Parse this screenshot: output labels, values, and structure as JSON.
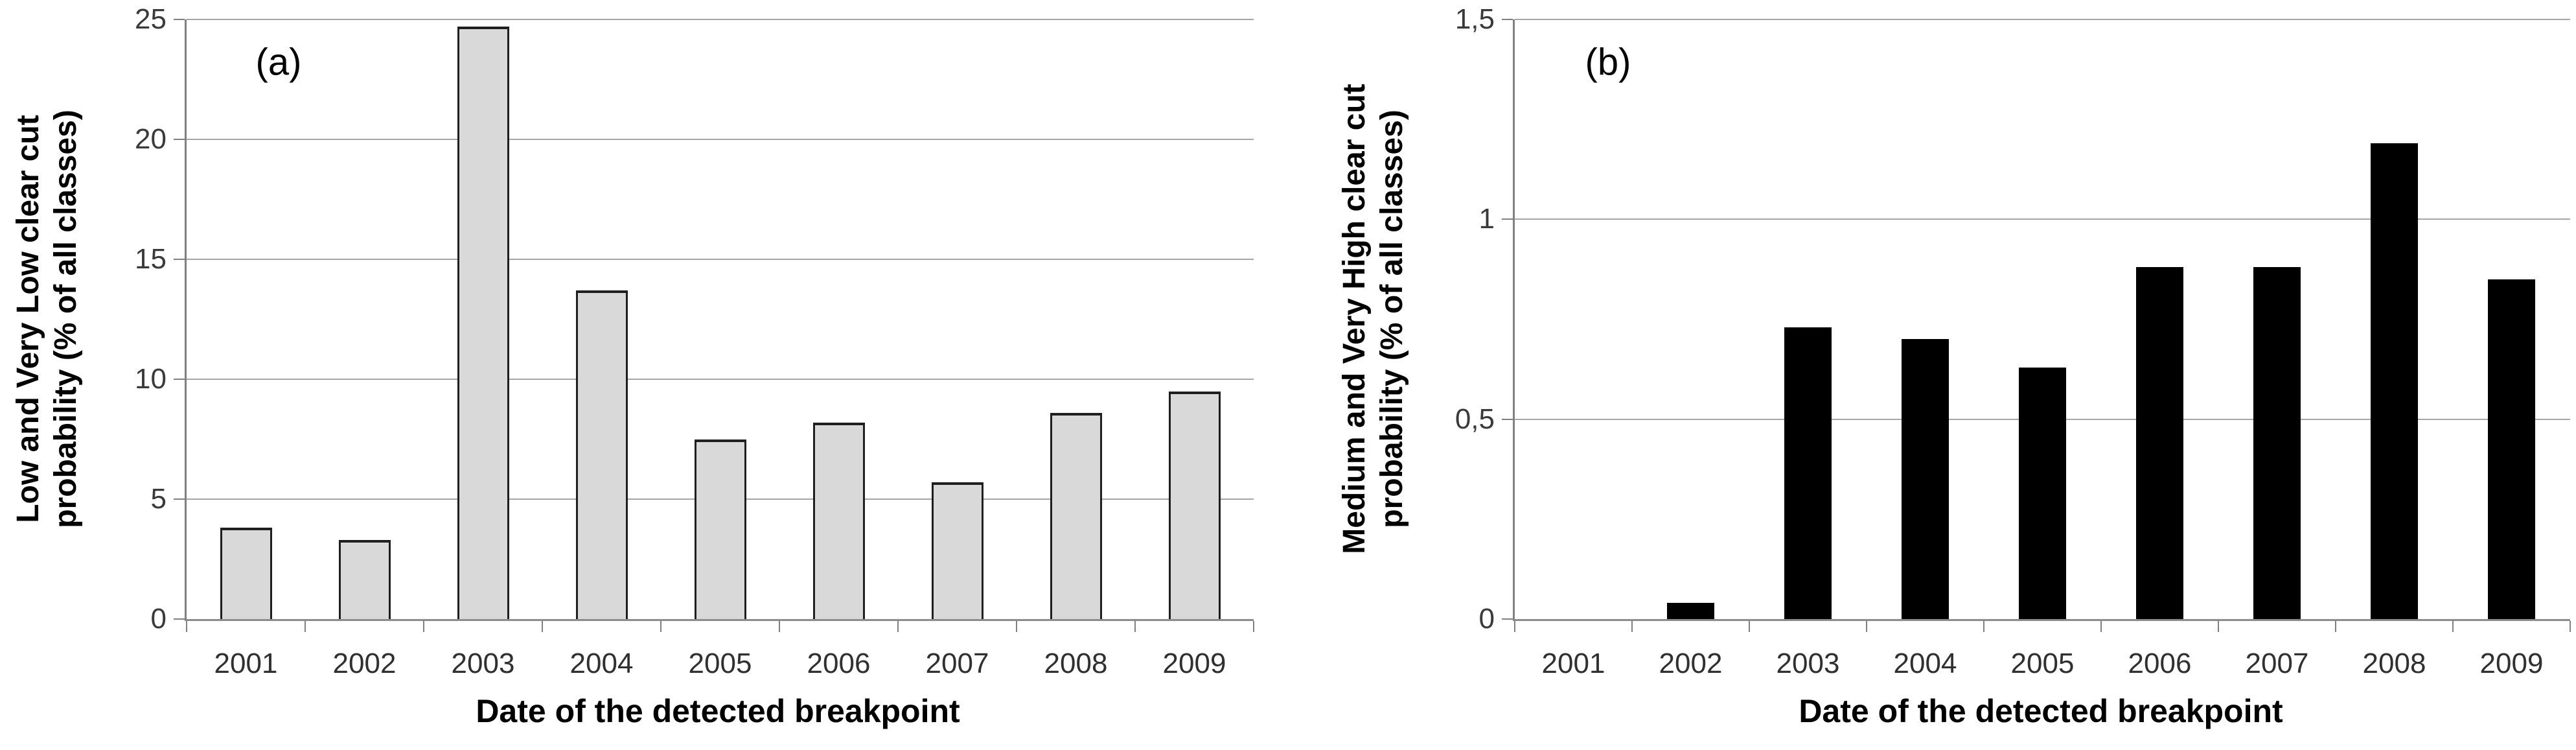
{
  "figure": {
    "background": "#ffffff",
    "description_labels": {
      "panel_a": "(a)",
      "panel_b": "(b)"
    }
  },
  "colors": {
    "grid_line": "#a6a6a6",
    "axis_line": "#808080",
    "tick_mark": "#808080",
    "tick_label_text": "#3a3a3a",
    "title_text": "#000000",
    "panel_a_bar_fill": "#d9d9d9",
    "panel_a_bar_border": "#1f1f1f",
    "panel_b_bar_fill": "#000000"
  },
  "chart_data": [
    {
      "type": "bar",
      "panel_label": "(a)",
      "title": "",
      "ylabel": "Low and Very Low clear cut probability (% of all classes)",
      "ylabel_lines": [
        "Low and Very Low clear cut",
        "probability (% of all classes)"
      ],
      "xlabel": "Date of the detected breakpoint",
      "categories": [
        "2001",
        "2002",
        "2003",
        "2004",
        "2005",
        "2006",
        "2007",
        "2008",
        "2009"
      ],
      "values": [
        3.8,
        3.3,
        24.7,
        13.7,
        7.5,
        8.2,
        5.7,
        8.6,
        9.5
      ],
      "ylim": [
        0,
        25
      ],
      "yticks": [
        {
          "value": 0,
          "label": "0"
        },
        {
          "value": 5,
          "label": "5"
        },
        {
          "value": 10,
          "label": "10"
        },
        {
          "value": 15,
          "label": "15"
        },
        {
          "value": 20,
          "label": "20"
        },
        {
          "value": 25,
          "label": "25"
        }
      ],
      "grid": true,
      "legend": null,
      "bar_fill": "#d9d9d9",
      "bar_border": "#1f1f1f"
    },
    {
      "type": "bar",
      "panel_label": "(b)",
      "title": "",
      "ylabel": "Medium and Very High clear cut probability (% of all classes)",
      "ylabel_lines": [
        "Medium and Very High clear cut",
        "probability (% of all classes)"
      ],
      "xlabel": "Date of the detected breakpoint",
      "categories": [
        "2001",
        "2002",
        "2003",
        "2004",
        "2005",
        "2006",
        "2007",
        "2008",
        "2009"
      ],
      "values": [
        0,
        0.04,
        0.73,
        0.7,
        0.63,
        0.88,
        0.88,
        1.19,
        0.85
      ],
      "ylim": [
        0,
        1.5
      ],
      "yticks": [
        {
          "value": 0,
          "label": "0"
        },
        {
          "value": 0.5,
          "label": "0,5"
        },
        {
          "value": 1,
          "label": "1"
        },
        {
          "value": 1.5,
          "label": "1,5"
        }
      ],
      "grid": true,
      "legend": null,
      "bar_fill": "#000000",
      "bar_border": "#000000"
    }
  ]
}
